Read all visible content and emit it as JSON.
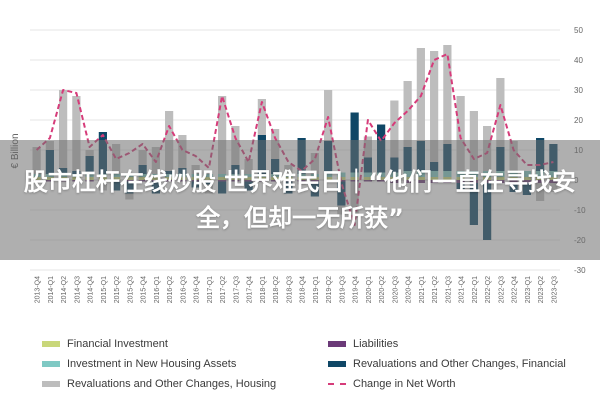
{
  "headline": "股市杠杆在线炒股 世界难民日｜“他们一直在寻找安全，但却一无所获”",
  "chart_data": {
    "type": "bar",
    "ylabel": "€ Billion",
    "ylim": [
      -30,
      50
    ],
    "yticks": [
      -30,
      -20,
      -10,
      0,
      10,
      20,
      30,
      40,
      50
    ],
    "grid": true,
    "legend_position": "bottom",
    "categories": [
      "2013-Q4",
      "2014-Q1",
      "2014-Q2",
      "2014-Q3",
      "2014-Q4",
      "2015-Q1",
      "2015-Q2",
      "2015-Q3",
      "2015-Q4",
      "2016-Q1",
      "2016-Q2",
      "2016-Q3",
      "2016-Q4",
      "2017-Q1",
      "2017-Q2",
      "2017-Q3",
      "2017-Q4",
      "2018-Q1",
      "2018-Q2",
      "2018-Q3",
      "2018-Q4",
      "2019-Q1",
      "2019-Q2",
      "2019-Q3",
      "2019-Q4",
      "2020-Q1",
      "2020-Q2",
      "2020-Q3",
      "2020-Q4",
      "2021-Q1",
      "2021-Q2",
      "2021-Q3",
      "2021-Q4",
      "2022-Q1",
      "2022-Q2",
      "2022-Q3",
      "2022-Q4",
      "2023-Q1",
      "2023-Q2",
      "2023-Q3"
    ],
    "series": [
      {
        "name": "Financial Investment",
        "kind": "bar",
        "color": "#c9d77a",
        "values": [
          1,
          1,
          1,
          1,
          1,
          1,
          1,
          1,
          1,
          1,
          1,
          1,
          1,
          1,
          1,
          1,
          1,
          1,
          1,
          1,
          1,
          1,
          1,
          1,
          1,
          1,
          1,
          1,
          1,
          1,
          1,
          1,
          1,
          1,
          1,
          1,
          1,
          1,
          1,
          1
        ]
      },
      {
        "name": "Investment in New Housing Assets",
        "kind": "bar",
        "color": "#7fc9c4",
        "values": [
          1,
          1,
          1,
          1,
          1,
          1,
          1,
          1,
          1,
          1,
          1,
          1,
          1,
          1,
          1,
          1,
          1,
          1,
          1,
          1,
          1,
          1,
          1,
          1.5,
          1.5,
          1.5,
          1.5,
          1.5,
          2,
          2,
          2,
          2,
          2,
          2,
          2,
          2,
          2,
          2,
          2,
          2
        ]
      },
      {
        "name": "Liabilities",
        "kind": "bar",
        "color": "#6b3a78",
        "values": [
          -0.5,
          -0.5,
          -0.5,
          -0.5,
          -0.5,
          -0.5,
          -0.5,
          -0.5,
          -0.5,
          -0.5,
          -0.5,
          -0.5,
          -0.5,
          -0.5,
          -0.5,
          -0.5,
          -0.5,
          -0.5,
          -0.5,
          -0.5,
          -0.5,
          -0.5,
          -0.5,
          -0.5,
          -0.5,
          -0.5,
          -0.5,
          -1,
          -1,
          -1,
          -1,
          -1,
          -1,
          -1,
          -1,
          -1,
          -1,
          -1,
          -1,
          -1
        ]
      },
      {
        "name": "Revaluations and Other Changes, Financial",
        "kind": "bar",
        "color": "#0f4766",
        "values": [
          0,
          8,
          2,
          1,
          6,
          14,
          -3,
          -4,
          3,
          -4,
          1,
          2,
          -2,
          -1,
          -4,
          3,
          -3,
          13,
          5,
          -4,
          12,
          -5,
          11,
          -8,
          20,
          5,
          16,
          5,
          8,
          10,
          3,
          9,
          -2,
          -14,
          -19,
          8,
          -3,
          -4,
          11,
          9
        ]
      },
      {
        "name": "Revaluations and Other Changes, Housing",
        "kind": "bar",
        "color": "#bdbdbd",
        "values": [
          9,
          3,
          26,
          25,
          2,
          -3,
          10,
          -2,
          5,
          9,
          20,
          11,
          3,
          -3,
          26,
          13,
          5,
          12,
          10,
          3,
          -1,
          7,
          17,
          -3,
          -12,
          7,
          0,
          19,
          22,
          31,
          37,
          33,
          25,
          20,
          15,
          23,
          10,
          0,
          -6,
          -3
        ]
      },
      {
        "name": "Change in Net Worth",
        "kind": "line",
        "color": "#d63c7a",
        "values": [
          10,
          14,
          30,
          29,
          11,
          15,
          7,
          9,
          12,
          6,
          18,
          10,
          8,
          4,
          28,
          14,
          6,
          26,
          14,
          6,
          3,
          7,
          21,
          -1,
          -15,
          20,
          13,
          19,
          23,
          28,
          40,
          42,
          14,
          7,
          9,
          25,
          10,
          5,
          5,
          6
        ]
      }
    ]
  }
}
